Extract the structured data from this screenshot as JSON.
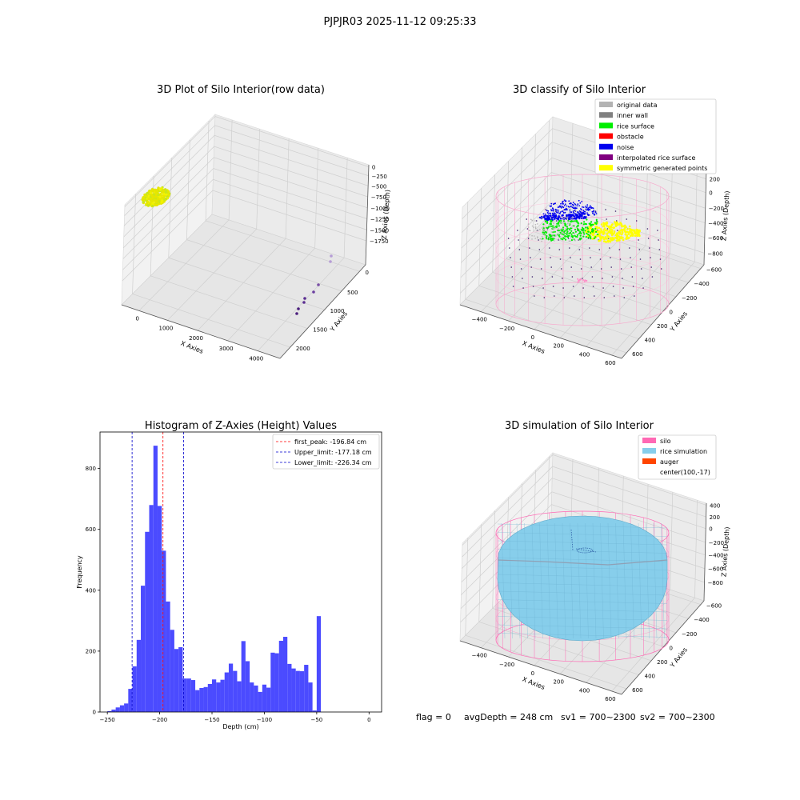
{
  "suptitle": "PJPJR03 2025-11-12 09:25:33",
  "status_line": {
    "flag": "flag = 0",
    "avg_depth": "avgDepth = 248 cm",
    "sv1": "sv1 = 700~2300",
    "sv2": "sv2 = 700~2300"
  },
  "colors": {
    "original": "#b3b3b3",
    "inner_wall": "#808080",
    "rice_surface": "#00ee00",
    "obstacle": "#ff0000",
    "noise": "#0000ee",
    "interpolated": "#800080",
    "symmetric": "#ffff00",
    "silo": "#ff69b4",
    "rice_sim": "#87ceeb",
    "auger": "#ff4500",
    "hist_bar": "#4b4bff",
    "first_peak_line": "#ff0000",
    "limit_line": "#0000cc"
  },
  "chart_data": [
    {
      "type": "scatter",
      "subtype": "3d",
      "title": "3D Plot of Silo Interior(row data)",
      "xlabel": "X Axies",
      "ylabel": "Y Axies",
      "zlabel": "Z Axies (Depth)",
      "x_ticks": [
        "0",
        "1000",
        "2000",
        "3000",
        "4000"
      ],
      "y_ticks": [
        "0",
        "500",
        "1000",
        "1500",
        "2000"
      ],
      "z_ticks": [
        "0",
        "−250",
        "−500",
        "−750",
        "−1000",
        "−1250",
        "−1500",
        "−1750"
      ]
    },
    {
      "type": "scatter",
      "subtype": "3d",
      "title": "3D classify of Silo Interior",
      "xlabel": "X Axies",
      "ylabel": "Y Axies",
      "zlabel": "Z Axies (Depth)",
      "x_ticks": [
        "−400",
        "−200",
        "0",
        "200",
        "400",
        "600"
      ],
      "y_ticks": [
        "−600",
        "−400",
        "−200",
        "0",
        "200",
        "400",
        "600"
      ],
      "z_ticks": [
        "200",
        "0",
        "−200",
        "−400",
        "−600",
        "−800"
      ],
      "legend": [
        "original data",
        "inner wall",
        "rice surface",
        "obstacle",
        "noise",
        "interpolated rice surface",
        "symmetric generated points"
      ],
      "legend_placement": "top-right"
    },
    {
      "type": "bar",
      "subtype": "histogram",
      "title": "Histogram of Z-Axies (Height) Values",
      "xlabel": "Depth (cm)",
      "ylabel": "Frequency",
      "xlim": [
        -257,
        12
      ],
      "ylim": [
        0,
        920
      ],
      "x_ticks": [
        -250,
        -200,
        -150,
        -100,
        -50,
        0
      ],
      "x_tick_labels": [
        "−250",
        "−200",
        "−150",
        "−100",
        "−50",
        "0"
      ],
      "y_ticks": [
        0,
        200,
        400,
        600,
        800
      ],
      "y_tick_labels": [
        "0",
        "200",
        "400",
        "600",
        "800"
      ],
      "bin_width": 4,
      "bins": [
        [
          -250,
          3
        ],
        [
          -246,
          8
        ],
        [
          -242,
          15
        ],
        [
          -238,
          22
        ],
        [
          -234,
          28
        ],
        [
          -230,
          76
        ],
        [
          -226,
          150
        ],
        [
          -222,
          237
        ],
        [
          -218,
          415
        ],
        [
          -214,
          592
        ],
        [
          -210,
          680
        ],
        [
          -206,
          875
        ],
        [
          -202,
          677
        ],
        [
          -198,
          530
        ],
        [
          -194,
          363
        ],
        [
          -190,
          270
        ],
        [
          -186,
          207
        ],
        [
          -182,
          213
        ],
        [
          -178,
          110
        ],
        [
          -174,
          110
        ],
        [
          -170,
          105
        ],
        [
          -166,
          72
        ],
        [
          -162,
          79
        ],
        [
          -158,
          82
        ],
        [
          -154,
          92
        ],
        [
          -150,
          107
        ],
        [
          -146,
          97
        ],
        [
          -142,
          106
        ],
        [
          -138,
          130
        ],
        [
          -134,
          159
        ],
        [
          -130,
          135
        ],
        [
          -126,
          101
        ],
        [
          -122,
          233
        ],
        [
          -118,
          167
        ],
        [
          -114,
          97
        ],
        [
          -110,
          87
        ],
        [
          -106,
          66
        ],
        [
          -102,
          90
        ],
        [
          -98,
          80
        ],
        [
          -94,
          195
        ],
        [
          -90,
          193
        ],
        [
          -86,
          234
        ],
        [
          -82,
          247
        ],
        [
          -78,
          158
        ],
        [
          -74,
          143
        ],
        [
          -70,
          135
        ],
        [
          -66,
          134
        ],
        [
          -62,
          155
        ],
        [
          -58,
          97
        ],
        [
          -54,
          5
        ],
        [
          -50,
          315
        ]
      ],
      "vlines": [
        {
          "value": -196.84,
          "label": "first_peak: -196.84 cm",
          "color": "#ff0000"
        },
        {
          "value": -177.18,
          "label": "Upper_limit: -177.18 cm",
          "color": "#0000cc"
        },
        {
          "value": -226.34,
          "label": "Lower_limit: -226.34 cm",
          "color": "#0000cc"
        }
      ],
      "legend_placement": "top-right"
    },
    {
      "type": "scatter",
      "subtype": "3d-surface",
      "title": "3D simulation of Silo Interior",
      "xlabel": "X Axies",
      "ylabel": "Y Axies",
      "zlabel": "Z Axies (Depth)",
      "x_ticks": [
        "−400",
        "−200",
        "0",
        "200",
        "400",
        "600"
      ],
      "y_ticks": [
        "−600",
        "−400",
        "−200",
        "0",
        "200",
        "400",
        "600"
      ],
      "z_ticks": [
        "400",
        "200",
        "0",
        "−200",
        "−400",
        "−600",
        "−800"
      ],
      "legend": [
        "silo",
        "rice simulation",
        "auger",
        "center(100,-17)"
      ],
      "legend_placement": "top-right"
    }
  ]
}
